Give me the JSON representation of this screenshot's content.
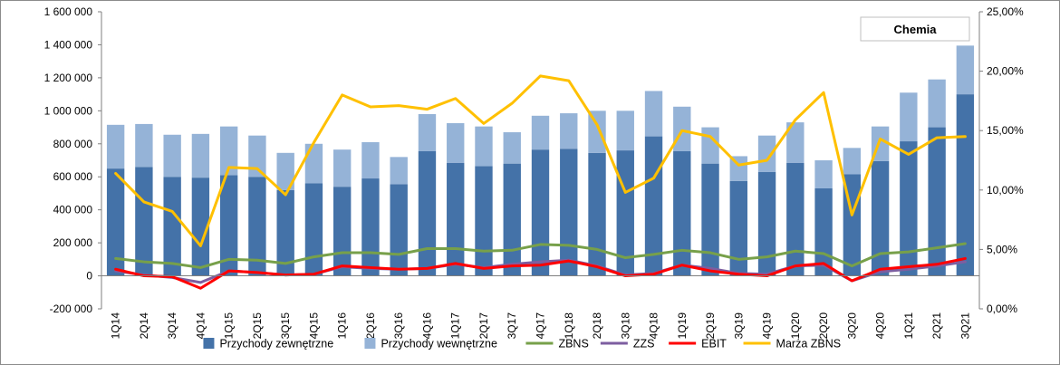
{
  "chart_data": {
    "type": "bar",
    "stacked": true,
    "title": "Chemia",
    "categories": [
      "1Q14",
      "2Q14",
      "3Q14",
      "4Q14",
      "1Q15",
      "2Q15",
      "3Q15",
      "4Q15",
      "1Q16",
      "2Q16",
      "3Q16",
      "4Q16",
      "1Q17",
      "2Q17",
      "3Q17",
      "4Q17",
      "1Q18",
      "2Q18",
      "3Q18",
      "4Q18",
      "1Q19",
      "2Q19",
      "3Q19",
      "4Q19",
      "1Q20",
      "2Q20",
      "3Q20",
      "4Q20",
      "1Q21",
      "2Q21",
      "3Q21"
    ],
    "y_left": {
      "ylim": [
        -200000,
        1600000
      ],
      "ticks": [
        -200000,
        0,
        200000,
        400000,
        600000,
        800000,
        1000000,
        1200000,
        1400000,
        1600000
      ],
      "tick_labels": [
        "-200 000",
        "0",
        "200 000",
        "400 000",
        "600 000",
        "800 000",
        "1 000 000",
        "1 200 000",
        "1 400 000",
        "1 600 000"
      ]
    },
    "y_right": {
      "ylim": [
        0,
        25
      ],
      "ticks": [
        0,
        5,
        10,
        15,
        20,
        25
      ],
      "tick_labels": [
        "0,00%",
        "5,00%",
        "10,00%",
        "15,00%",
        "20,00%",
        "25,00%"
      ]
    },
    "grid": false,
    "legend_position": "bottom",
    "series": [
      {
        "name": "Przychody zewnętrzne",
        "kind": "bar",
        "axis": "left",
        "color": "#4472a8",
        "values": [
          650000,
          660000,
          600000,
          595000,
          610000,
          600000,
          520000,
          560000,
          540000,
          590000,
          555000,
          755000,
          685000,
          665000,
          680000,
          765000,
          770000,
          745000,
          760000,
          845000,
          755000,
          680000,
          575000,
          630000,
          685000,
          530000,
          615000,
          695000,
          815000,
          900000,
          1100000
        ]
      },
      {
        "name": "Przychody wewnętrzne",
        "kind": "bar",
        "axis": "left",
        "color": "#95b3d7",
        "values": [
          265000,
          260000,
          255000,
          265000,
          295000,
          250000,
          225000,
          240000,
          225000,
          220000,
          165000,
          225000,
          240000,
          240000,
          190000,
          205000,
          215000,
          255000,
          240000,
          275000,
          270000,
          220000,
          150000,
          220000,
          245000,
          170000,
          160000,
          210000,
          295000,
          290000,
          295000
        ]
      },
      {
        "name": "ZBNS",
        "kind": "line",
        "axis": "left",
        "color": "#77a04a",
        "values": [
          105000,
          85000,
          75000,
          50000,
          100000,
          95000,
          75000,
          115000,
          140000,
          140000,
          130000,
          165000,
          165000,
          150000,
          155000,
          190000,
          185000,
          160000,
          110000,
          130000,
          155000,
          140000,
          100000,
          115000,
          150000,
          135000,
          60000,
          135000,
          145000,
          170000,
          195000
        ]
      },
      {
        "name": "ZZS",
        "kind": "line",
        "axis": "left",
        "color": "#7d5ea0",
        "values": [
          30000,
          5000,
          -10000,
          -40000,
          30000,
          20000,
          5000,
          10000,
          55000,
          45000,
          40000,
          45000,
          70000,
          50000,
          70000,
          85000,
          95000,
          60000,
          5000,
          15000,
          65000,
          45000,
          15000,
          10000,
          60000,
          65000,
          -30000,
          25000,
          40000,
          60000,
          85000
        ]
      },
      {
        "name": "EBIT",
        "kind": "line",
        "axis": "left",
        "color": "#ff0000",
        "values": [
          40000,
          0,
          -5000,
          -75000,
          30000,
          20000,
          5000,
          10000,
          60000,
          50000,
          40000,
          45000,
          75000,
          45000,
          60000,
          65000,
          90000,
          55000,
          0,
          10000,
          65000,
          30000,
          10000,
          0,
          60000,
          75000,
          -30000,
          40000,
          55000,
          70000,
          105000
        ]
      },
      {
        "name": "Marża ZBNS",
        "kind": "line",
        "axis": "right",
        "color": "#ffc000",
        "values": [
          11.4,
          9.0,
          8.2,
          5.3,
          11.9,
          11.8,
          9.6,
          14.0,
          18.0,
          17.0,
          17.1,
          16.8,
          17.7,
          15.6,
          17.3,
          19.6,
          19.2,
          15.5,
          9.8,
          11.0,
          15.0,
          14.5,
          12.1,
          12.5,
          15.9,
          18.2,
          7.9,
          14.3,
          13.0,
          14.4,
          14.5
        ]
      }
    ]
  }
}
